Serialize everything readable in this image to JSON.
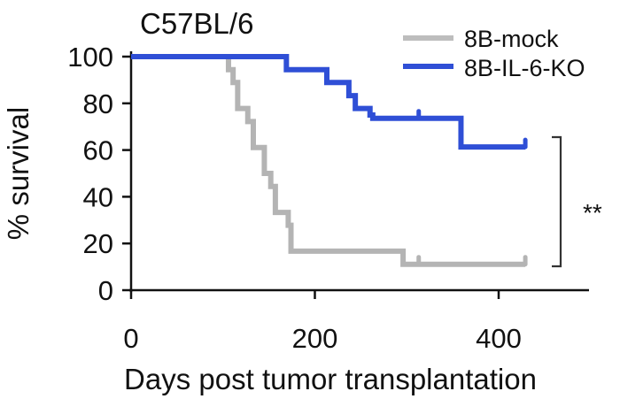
{
  "chart_data": {
    "type": "line",
    "subtype": "kaplan-meier-step",
    "title": "C57BL/6",
    "xlabel": "Days post tumor transplantation",
    "ylabel": "% survival",
    "xlim": [
      0,
      500
    ],
    "ylim": [
      0,
      100
    ],
    "xticks": [
      0,
      200,
      400
    ],
    "yticks": [
      0,
      20,
      40,
      60,
      80,
      100
    ],
    "grid": false,
    "legend_position": "top-right",
    "series": [
      {
        "name": "8B-mock",
        "color": "#b4b4b4",
        "steps": [
          [
            0,
            100
          ],
          [
            106,
            94.4
          ],
          [
            111,
            88.9
          ],
          [
            116,
            77.8
          ],
          [
            127,
            72.2
          ],
          [
            133,
            61.1
          ],
          [
            145,
            50.0
          ],
          [
            152,
            44.4
          ],
          [
            157,
            33.3
          ],
          [
            171,
            27.8
          ],
          [
            174,
            16.7
          ],
          [
            296,
            11.1
          ],
          [
            429,
            11.1
          ]
        ],
        "censored": [
          [
            313,
            11.1
          ],
          [
            429,
            11.1
          ]
        ]
      },
      {
        "name": "8B-IL-6-KO",
        "color": "#2f4fd6",
        "steps": [
          [
            0,
            100
          ],
          [
            169,
            94.4
          ],
          [
            213,
            88.9
          ],
          [
            237,
            83.3
          ],
          [
            244,
            77.8
          ],
          [
            260,
            75.0
          ],
          [
            263,
            73.6
          ],
          [
            359,
            61.3
          ],
          [
            429,
            61.3
          ]
        ],
        "censored": [
          [
            313,
            73.6
          ],
          [
            429,
            61.3
          ]
        ]
      }
    ],
    "annotations": [
      {
        "type": "significance-bracket",
        "label": "**",
        "y_range": [
          12,
          65
        ],
        "x": 470
      }
    ]
  }
}
